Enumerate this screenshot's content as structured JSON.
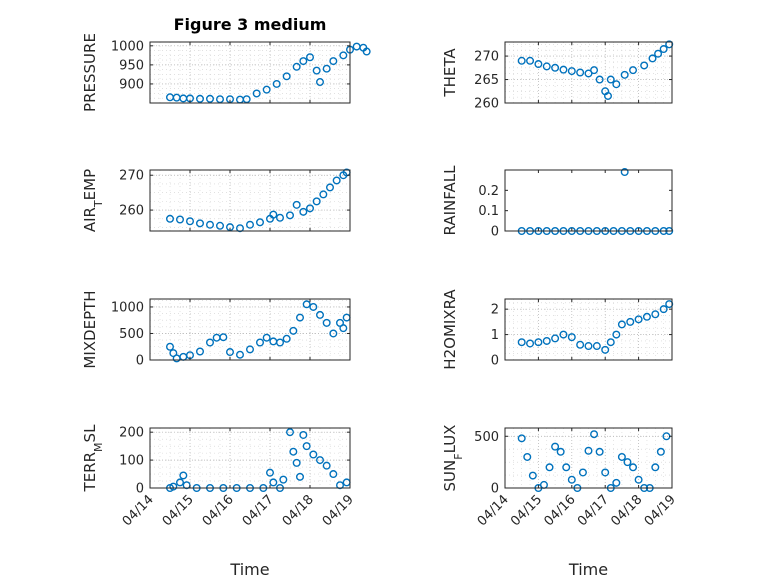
{
  "figure": {
    "title": "Figure 3 medium",
    "xlabel": "Time",
    "date_ticks": [
      "04/14",
      "04/15",
      "04/16",
      "04/17",
      "04/18",
      "04/19"
    ]
  },
  "style": {
    "marker_color": "#0072BD",
    "grid_color": "#b0b0b0",
    "axis_color": "#262626"
  },
  "chart_data": [
    {
      "type": "scatter",
      "ylabel": "PRESSURE",
      "ylim": [
        850,
        1010
      ],
      "yticks": [
        900,
        950,
        1000
      ],
      "grid": true,
      "xlim": [
        "2016-04-14",
        "2016-04-19"
      ],
      "points": [
        [
          "2016-04-14T12:00",
          865
        ],
        [
          "2016-04-14T16:00",
          864
        ],
        [
          "2016-04-14T20:00",
          862
        ],
        [
          "2016-04-15T00:00",
          862
        ],
        [
          "2016-04-15T06:00",
          861
        ],
        [
          "2016-04-15T12:00",
          861
        ],
        [
          "2016-04-15T18:00",
          860
        ],
        [
          "2016-04-16T00:00",
          860
        ],
        [
          "2016-04-16T06:00",
          859
        ],
        [
          "2016-04-16T10:00",
          860
        ],
        [
          "2016-04-16T16:00",
          875
        ],
        [
          "2016-04-16T22:00",
          885
        ],
        [
          "2016-04-17T04:00",
          900
        ],
        [
          "2016-04-17T10:00",
          920
        ],
        [
          "2016-04-17T16:00",
          945
        ],
        [
          "2016-04-17T20:00",
          960
        ],
        [
          "2016-04-18T00:00",
          970
        ],
        [
          "2016-04-18T04:00",
          935
        ],
        [
          "2016-04-18T06:00",
          905
        ],
        [
          "2016-04-18T10:00",
          940
        ],
        [
          "2016-04-18T14:00",
          960
        ],
        [
          "2016-04-18T20:00",
          975
        ],
        [
          "2016-04-19T00:00",
          990
        ],
        [
          "2016-04-19T04:00",
          998
        ],
        [
          "2016-04-19T08:00",
          995
        ],
        [
          "2016-04-19T10:00",
          985
        ]
      ]
    },
    {
      "type": "scatter",
      "ylabel": "THETA",
      "ylim": [
        260,
        273
      ],
      "yticks": [
        260,
        265,
        270
      ],
      "grid": true,
      "xlim": [
        "2016-04-14",
        "2016-04-19"
      ],
      "points": [
        [
          "2016-04-14T12:00",
          269
        ],
        [
          "2016-04-14T18:00",
          269
        ],
        [
          "2016-04-15T00:00",
          268.3
        ],
        [
          "2016-04-15T06:00",
          267.8
        ],
        [
          "2016-04-15T12:00",
          267.5
        ],
        [
          "2016-04-15T18:00",
          267.1
        ],
        [
          "2016-04-16T00:00",
          266.8
        ],
        [
          "2016-04-16T06:00",
          266.5
        ],
        [
          "2016-04-16T12:00",
          266.3
        ],
        [
          "2016-04-16T16:00",
          267
        ],
        [
          "2016-04-16T20:00",
          265
        ],
        [
          "2016-04-17T00:00",
          262.5
        ],
        [
          "2016-04-17T02:00",
          261.5
        ],
        [
          "2016-04-17T04:00",
          265
        ],
        [
          "2016-04-17T08:00",
          264
        ],
        [
          "2016-04-17T14:00",
          266
        ],
        [
          "2016-04-17T20:00",
          267
        ],
        [
          "2016-04-18T04:00",
          268
        ],
        [
          "2016-04-18T10:00",
          269.5
        ],
        [
          "2016-04-18T14:00",
          270.5
        ],
        [
          "2016-04-18T18:00",
          271.5
        ],
        [
          "2016-04-18T22:00",
          272.5
        ]
      ]
    },
    {
      "type": "scatter",
      "ylabel": "AIR_TEMP",
      "ylim": [
        254,
        271.5
      ],
      "yticks": [
        260,
        270
      ],
      "grid": true,
      "xlim": [
        "2016-04-14",
        "2016-04-19"
      ],
      "points": [
        [
          "2016-04-14T12:00",
          257.5
        ],
        [
          "2016-04-14T18:00",
          257.3
        ],
        [
          "2016-04-15T00:00",
          256.8
        ],
        [
          "2016-04-15T06:00",
          256.2
        ],
        [
          "2016-04-15T12:00",
          255.8
        ],
        [
          "2016-04-15T18:00",
          255.5
        ],
        [
          "2016-04-16T00:00",
          255.1
        ],
        [
          "2016-04-16T06:00",
          254.8
        ],
        [
          "2016-04-16T12:00",
          255.8
        ],
        [
          "2016-04-16T18:00",
          256.5
        ],
        [
          "2016-04-17T00:00",
          257.5
        ],
        [
          "2016-04-17T02:00",
          258.7
        ],
        [
          "2016-04-17T06:00",
          257.8
        ],
        [
          "2016-04-17T12:00",
          258.5
        ],
        [
          "2016-04-17T16:00",
          261.5
        ],
        [
          "2016-04-17T20:00",
          259.5
        ],
        [
          "2016-04-18T00:00",
          260.5
        ],
        [
          "2016-04-18T04:00",
          262.5
        ],
        [
          "2016-04-18T08:00",
          264.5
        ],
        [
          "2016-04-18T12:00",
          266.5
        ],
        [
          "2016-04-18T16:00",
          268.5
        ],
        [
          "2016-04-18T20:00",
          270
        ],
        [
          "2016-04-18T22:00",
          270.8
        ]
      ]
    },
    {
      "type": "scatter",
      "ylabel": "RAINFALL",
      "ylim": [
        0,
        0.3
      ],
      "yticks": [
        0,
        0.1,
        0.2
      ],
      "grid": false,
      "xlim": [
        "2016-04-14",
        "2016-04-19"
      ],
      "points": [
        [
          "2016-04-14T12:00",
          0
        ],
        [
          "2016-04-14T18:00",
          0
        ],
        [
          "2016-04-15T00:00",
          0
        ],
        [
          "2016-04-15T06:00",
          0
        ],
        [
          "2016-04-15T12:00",
          0
        ],
        [
          "2016-04-15T18:00",
          0
        ],
        [
          "2016-04-16T00:00",
          0
        ],
        [
          "2016-04-16T06:00",
          0
        ],
        [
          "2016-04-16T12:00",
          0
        ],
        [
          "2016-04-16T18:00",
          0
        ],
        [
          "2016-04-17T00:00",
          0
        ],
        [
          "2016-04-17T06:00",
          0
        ],
        [
          "2016-04-17T12:00",
          0
        ],
        [
          "2016-04-17T14:00",
          0.29
        ],
        [
          "2016-04-17T18:00",
          0
        ],
        [
          "2016-04-18T00:00",
          0
        ],
        [
          "2016-04-18T06:00",
          0
        ],
        [
          "2016-04-18T12:00",
          0
        ],
        [
          "2016-04-18T18:00",
          0
        ],
        [
          "2016-04-18T22:00",
          0
        ]
      ]
    },
    {
      "type": "scatter",
      "ylabel": "MIXDEPTH",
      "ylim": [
        0,
        1150
      ],
      "yticks": [
        0,
        500,
        1000
      ],
      "grid": true,
      "xlim": [
        "2016-04-14",
        "2016-04-19"
      ],
      "points": [
        [
          "2016-04-14T12:00",
          250
        ],
        [
          "2016-04-14T14:00",
          130
        ],
        [
          "2016-04-14T16:00",
          30
        ],
        [
          "2016-04-14T20:00",
          60
        ],
        [
          "2016-04-15T00:00",
          90
        ],
        [
          "2016-04-15T06:00",
          160
        ],
        [
          "2016-04-15T12:00",
          330
        ],
        [
          "2016-04-15T16:00",
          420
        ],
        [
          "2016-04-15T20:00",
          430
        ],
        [
          "2016-04-16T00:00",
          150
        ],
        [
          "2016-04-16T06:00",
          100
        ],
        [
          "2016-04-16T12:00",
          200
        ],
        [
          "2016-04-16T18:00",
          330
        ],
        [
          "2016-04-16T22:00",
          420
        ],
        [
          "2016-04-17T02:00",
          350
        ],
        [
          "2016-04-17T06:00",
          330
        ],
        [
          "2016-04-17T10:00",
          400
        ],
        [
          "2016-04-17T14:00",
          550
        ],
        [
          "2016-04-17T18:00",
          800
        ],
        [
          "2016-04-17T22:00",
          1050
        ],
        [
          "2016-04-18T02:00",
          1000
        ],
        [
          "2016-04-18T06:00",
          850
        ],
        [
          "2016-04-18T10:00",
          700
        ],
        [
          "2016-04-18T14:00",
          500
        ],
        [
          "2016-04-18T18:00",
          700
        ],
        [
          "2016-04-18T20:00",
          600
        ],
        [
          "2016-04-18T22:00",
          800
        ]
      ]
    },
    {
      "type": "scatter",
      "ylabel": "H2OMIXRA",
      "ylim": [
        0,
        2.4
      ],
      "yticks": [
        0,
        1,
        2
      ],
      "grid": true,
      "xlim": [
        "2016-04-14",
        "2016-04-19"
      ],
      "points": [
        [
          "2016-04-14T12:00",
          0.7
        ],
        [
          "2016-04-14T18:00",
          0.65
        ],
        [
          "2016-04-15T00:00",
          0.7
        ],
        [
          "2016-04-15T06:00",
          0.75
        ],
        [
          "2016-04-15T12:00",
          0.85
        ],
        [
          "2016-04-15T18:00",
          1
        ],
        [
          "2016-04-16T00:00",
          0.9
        ],
        [
          "2016-04-16T06:00",
          0.6
        ],
        [
          "2016-04-16T12:00",
          0.55
        ],
        [
          "2016-04-16T18:00",
          0.55
        ],
        [
          "2016-04-17T00:00",
          0.4
        ],
        [
          "2016-04-17T04:00",
          0.7
        ],
        [
          "2016-04-17T08:00",
          1.0
        ],
        [
          "2016-04-17T12:00",
          1.4
        ],
        [
          "2016-04-17T18:00",
          1.5
        ],
        [
          "2016-04-18T00:00",
          1.6
        ],
        [
          "2016-04-18T06:00",
          1.7
        ],
        [
          "2016-04-18T12:00",
          1.8
        ],
        [
          "2016-04-18T18:00",
          2.0
        ],
        [
          "2016-04-18T22:00",
          2.2
        ]
      ]
    },
    {
      "type": "scatter",
      "ylabel": "TERR_MSL",
      "ylim": [
        0,
        215
      ],
      "yticks": [
        0,
        100,
        200
      ],
      "grid": true,
      "xlim": [
        "2016-04-14",
        "2016-04-19"
      ],
      "points": [
        [
          "2016-04-14T12:00",
          0
        ],
        [
          "2016-04-14T14:00",
          5
        ],
        [
          "2016-04-14T18:00",
          20
        ],
        [
          "2016-04-14T20:00",
          45
        ],
        [
          "2016-04-14T22:00",
          10
        ],
        [
          "2016-04-15T04:00",
          0
        ],
        [
          "2016-04-15T12:00",
          0
        ],
        [
          "2016-04-15T20:00",
          0
        ],
        [
          "2016-04-16T04:00",
          0
        ],
        [
          "2016-04-16T12:00",
          0
        ],
        [
          "2016-04-16T20:00",
          0
        ],
        [
          "2016-04-17T00:00",
          55
        ],
        [
          "2016-04-17T02:00",
          20
        ],
        [
          "2016-04-17T06:00",
          0
        ],
        [
          "2016-04-17T08:00",
          30
        ],
        [
          "2016-04-17T12:00",
          200
        ],
        [
          "2016-04-17T14:00",
          130
        ],
        [
          "2016-04-17T16:00",
          90
        ],
        [
          "2016-04-17T18:00",
          40
        ],
        [
          "2016-04-17T20:00",
          190
        ],
        [
          "2016-04-17T22:00",
          150
        ],
        [
          "2016-04-18T02:00",
          120
        ],
        [
          "2016-04-18T06:00",
          100
        ],
        [
          "2016-04-18T10:00",
          80
        ],
        [
          "2016-04-18T14:00",
          50
        ],
        [
          "2016-04-18T18:00",
          10
        ],
        [
          "2016-04-18T22:00",
          20
        ]
      ]
    },
    {
      "type": "scatter",
      "ylabel": "SUN_FLUX",
      "ylim": [
        0,
        580
      ],
      "yticks": [
        0,
        500
      ],
      "grid": true,
      "xlim": [
        "2016-04-14",
        "2016-04-19"
      ],
      "points": [
        [
          "2016-04-14T12:00",
          480
        ],
        [
          "2016-04-14T16:00",
          300
        ],
        [
          "2016-04-14T20:00",
          120
        ],
        [
          "2016-04-15T00:00",
          0
        ],
        [
          "2016-04-15T04:00",
          30
        ],
        [
          "2016-04-15T08:00",
          200
        ],
        [
          "2016-04-15T12:00",
          400
        ],
        [
          "2016-04-15T16:00",
          350
        ],
        [
          "2016-04-15T20:00",
          200
        ],
        [
          "2016-04-16T00:00",
          80
        ],
        [
          "2016-04-16T04:00",
          0
        ],
        [
          "2016-04-16T08:00",
          150
        ],
        [
          "2016-04-16T12:00",
          360
        ],
        [
          "2016-04-16T16:00",
          520
        ],
        [
          "2016-04-16T20:00",
          350
        ],
        [
          "2016-04-17T00:00",
          150
        ],
        [
          "2016-04-17T04:00",
          0
        ],
        [
          "2016-04-17T08:00",
          50
        ],
        [
          "2016-04-17T12:00",
          300
        ],
        [
          "2016-04-17T16:00",
          250
        ],
        [
          "2016-04-17T20:00",
          200
        ],
        [
          "2016-04-18T00:00",
          80
        ],
        [
          "2016-04-18T04:00",
          0
        ],
        [
          "2016-04-18T08:00",
          0
        ],
        [
          "2016-04-18T12:00",
          200
        ],
        [
          "2016-04-18T16:00",
          350
        ],
        [
          "2016-04-18T20:00",
          500
        ]
      ]
    }
  ]
}
